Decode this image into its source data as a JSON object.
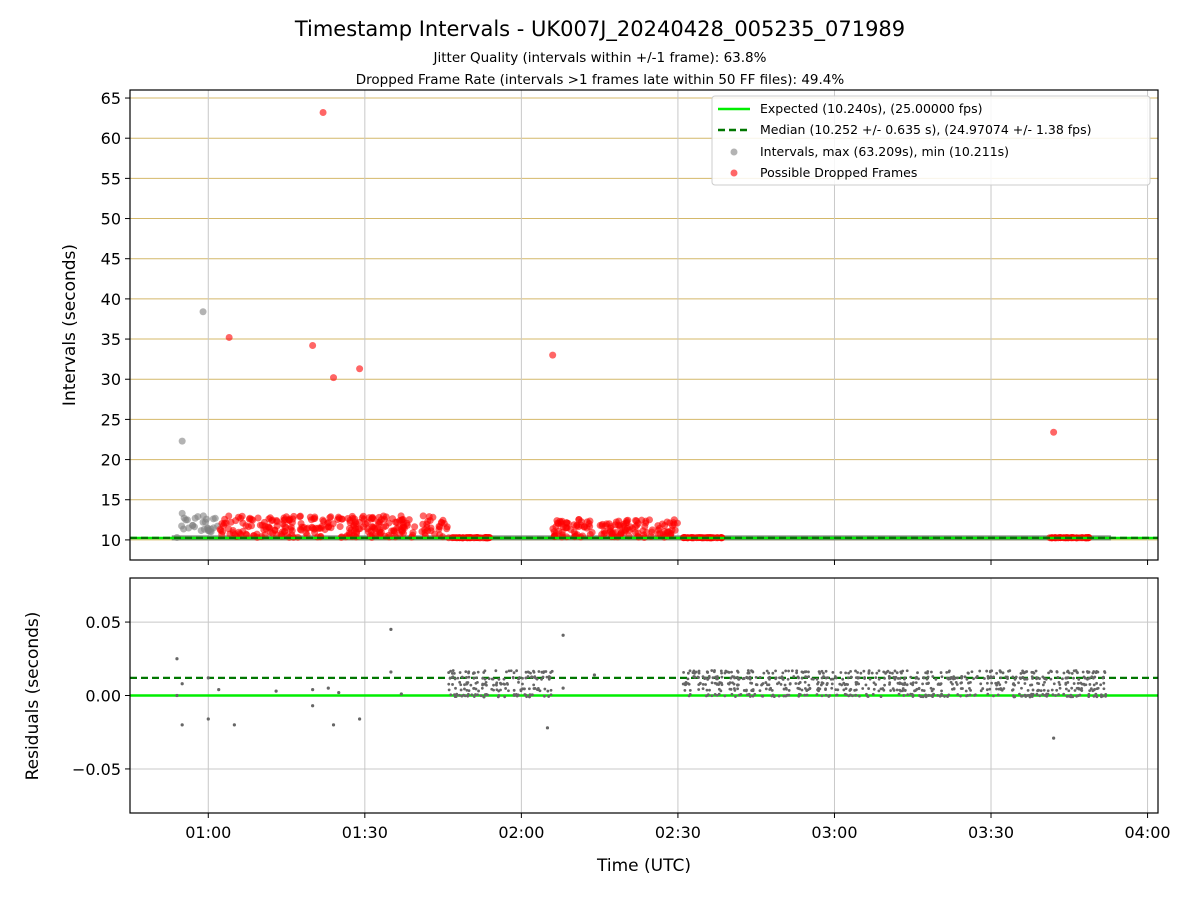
{
  "title": "Timestamp Intervals - UK007J_20240428_005235_071989",
  "subtitle_1": "Jitter Quality (intervals within +/-1 frame): 63.8%",
  "subtitle_2": "Dropped Frame Rate (intervals >1 frames late within 50 FF files): 49.4%",
  "colors": {
    "expected": "#00ee00",
    "median": "#007700",
    "intervals": "#808080",
    "dropped": "#ff0000",
    "hgrid_top": "#d4b86a",
    "grid": "#c8c8c8"
  },
  "chart_data": [
    {
      "type": "scatter",
      "panel": "top",
      "xlabel": "",
      "ylabel": "Intervals (seconds)",
      "xlim_minutes": [
        45,
        242
      ],
      "ylim": [
        7.5,
        66
      ],
      "x_ticks": [
        "01:00",
        "01:30",
        "02:00",
        "02:30",
        "03:00",
        "03:30",
        "04:00"
      ],
      "y_ticks": [
        10,
        15,
        20,
        25,
        30,
        35,
        40,
        45,
        50,
        55,
        60,
        65
      ],
      "grid": true,
      "legend_location": "top-right",
      "legend": [
        "Expected (10.240s), (25.00000 fps)",
        "Median (10.252 +/- 0.635 s), (24.97074 +/- 1.38 fps)",
        "Intervals, max (63.209s), min (10.211s)",
        "Possible Dropped Frames"
      ],
      "expected_value": 10.24,
      "median_value": 10.252,
      "series": [
        {
          "name": "Intervals, max (63.209s), min (10.211s)",
          "note_points": [
            {
              "t": "00:55",
              "y": 22.3
            },
            {
              "t": "00:59",
              "y": 38.4
            },
            {
              "t": "00:55",
              "y": 13.3
            },
            {
              "t": "00:56",
              "y": 12.5
            },
            {
              "t": "00:57",
              "y": 11.8
            },
            {
              "t": "00:58",
              "y": 12.9
            },
            {
              "t": "00:59",
              "y": 12.2
            },
            {
              "t": "01:00",
              "y": 11.2
            },
            {
              "t": "01:01",
              "y": 11.5
            },
            {
              "t": "00:54",
              "y": 10.3
            }
          ],
          "continuous_ranges": [
            [
              "00:53",
              "03:53"
            ]
          ]
        },
        {
          "name": "Possible Dropped Frames",
          "outliers": [
            {
              "t": "01:22",
              "y": 63.2
            },
            {
              "t": "01:04",
              "y": 35.2
            },
            {
              "t": "01:20",
              "y": 34.2
            },
            {
              "t": "01:24",
              "y": 30.2
            },
            {
              "t": "01:29",
              "y": 31.3
            },
            {
              "t": "02:06",
              "y": 33.0
            },
            {
              "t": "03:42",
              "y": 23.4
            }
          ],
          "clusters": [
            {
              "from": "01:02",
              "to": "01:46",
              "y_range": [
                10.3,
                13.0
              ]
            },
            {
              "from": "01:46",
              "to": "01:54",
              "y_range": [
                10.25,
                10.3
              ]
            },
            {
              "from": "02:06",
              "to": "02:30",
              "y_range": [
                10.3,
                12.6
              ]
            },
            {
              "from": "02:31",
              "to": "02:39",
              "y_range": [
                10.25,
                10.3
              ]
            },
            {
              "from": "03:41",
              "to": "03:49",
              "y_range": [
                10.25,
                10.3
              ]
            }
          ]
        }
      ]
    },
    {
      "type": "scatter",
      "panel": "bottom",
      "xlabel": "Time (UTC)",
      "ylabel": "Residuals (seconds)",
      "xlim_minutes": [
        45,
        242
      ],
      "ylim": [
        -0.08,
        0.08
      ],
      "x_ticks": [
        "01:00",
        "01:30",
        "02:00",
        "02:30",
        "03:00",
        "03:30",
        "04:00"
      ],
      "y_ticks": [
        "0.05",
        "0.00",
        "−0.05"
      ],
      "grid": true,
      "expected_value": 0.0,
      "median_value": 0.012,
      "series": [
        {
          "name": "Residuals",
          "sparse_points": [
            {
              "t": "00:54",
              "y": 0.025
            },
            {
              "t": "00:55",
              "y": 0.008
            },
            {
              "t": "00:54",
              "y": 0.0
            },
            {
              "t": "00:55",
              "y": -0.02
            },
            {
              "t": "01:00",
              "y": -0.016
            },
            {
              "t": "01:00",
              "y": 0.012
            },
            {
              "t": "01:02",
              "y": 0.004
            },
            {
              "t": "01:05",
              "y": -0.02
            },
            {
              "t": "01:13",
              "y": 0.003
            },
            {
              "t": "01:20",
              "y": 0.004
            },
            {
              "t": "01:20",
              "y": -0.007
            },
            {
              "t": "01:23",
              "y": 0.005
            },
            {
              "t": "01:24",
              "y": -0.02
            },
            {
              "t": "01:25",
              "y": 0.002
            },
            {
              "t": "01:29",
              "y": -0.016
            },
            {
              "t": "01:35",
              "y": 0.045
            },
            {
              "t": "01:35",
              "y": 0.016
            },
            {
              "t": "01:37",
              "y": 0.001
            },
            {
              "t": "02:05",
              "y": -0.022
            },
            {
              "t": "02:08",
              "y": 0.041
            },
            {
              "t": "02:08",
              "y": 0.005
            },
            {
              "t": "02:14",
              "y": 0.014
            },
            {
              "t": "03:42",
              "y": -0.029
            }
          ],
          "dense_bands": [
            {
              "from": "01:46",
              "to": "02:06",
              "y_range": [
                0.0,
                0.016
              ]
            },
            {
              "from": "02:31",
              "to": "03:52",
              "y_range": [
                0.0,
                0.016
              ]
            }
          ]
        }
      ]
    }
  ]
}
